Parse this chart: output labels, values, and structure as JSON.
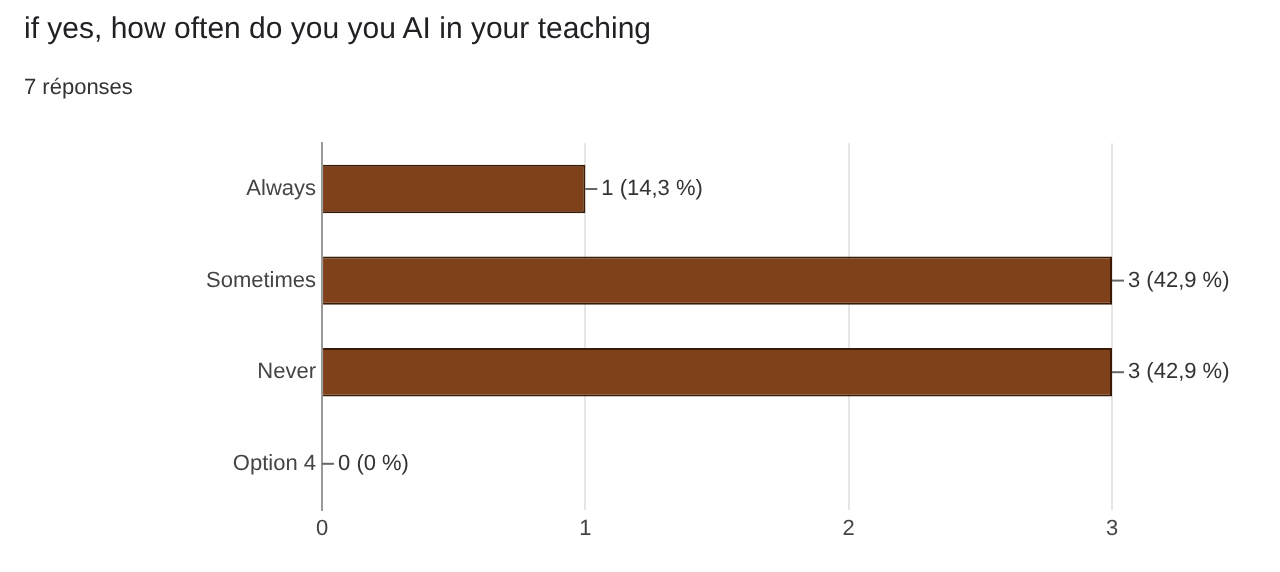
{
  "chart_data": {
    "type": "bar",
    "orientation": "horizontal",
    "title": "if yes, how often do you you AI in your teaching",
    "subtitle": "7 réponses",
    "categories": [
      "Always",
      "Sometimes",
      "Never",
      "Option 4"
    ],
    "values": [
      1,
      3,
      3,
      0
    ],
    "color": "#7f4119",
    "value_labels": [
      "1 (14,3 %)",
      "3 (42,9 %)",
      "3 (42,9 %)",
      "0 (0 %)"
    ],
    "xlim": [
      0,
      3
    ],
    "xticks": [
      0,
      1,
      2,
      3
    ],
    "grid": "x",
    "legend": false
  }
}
